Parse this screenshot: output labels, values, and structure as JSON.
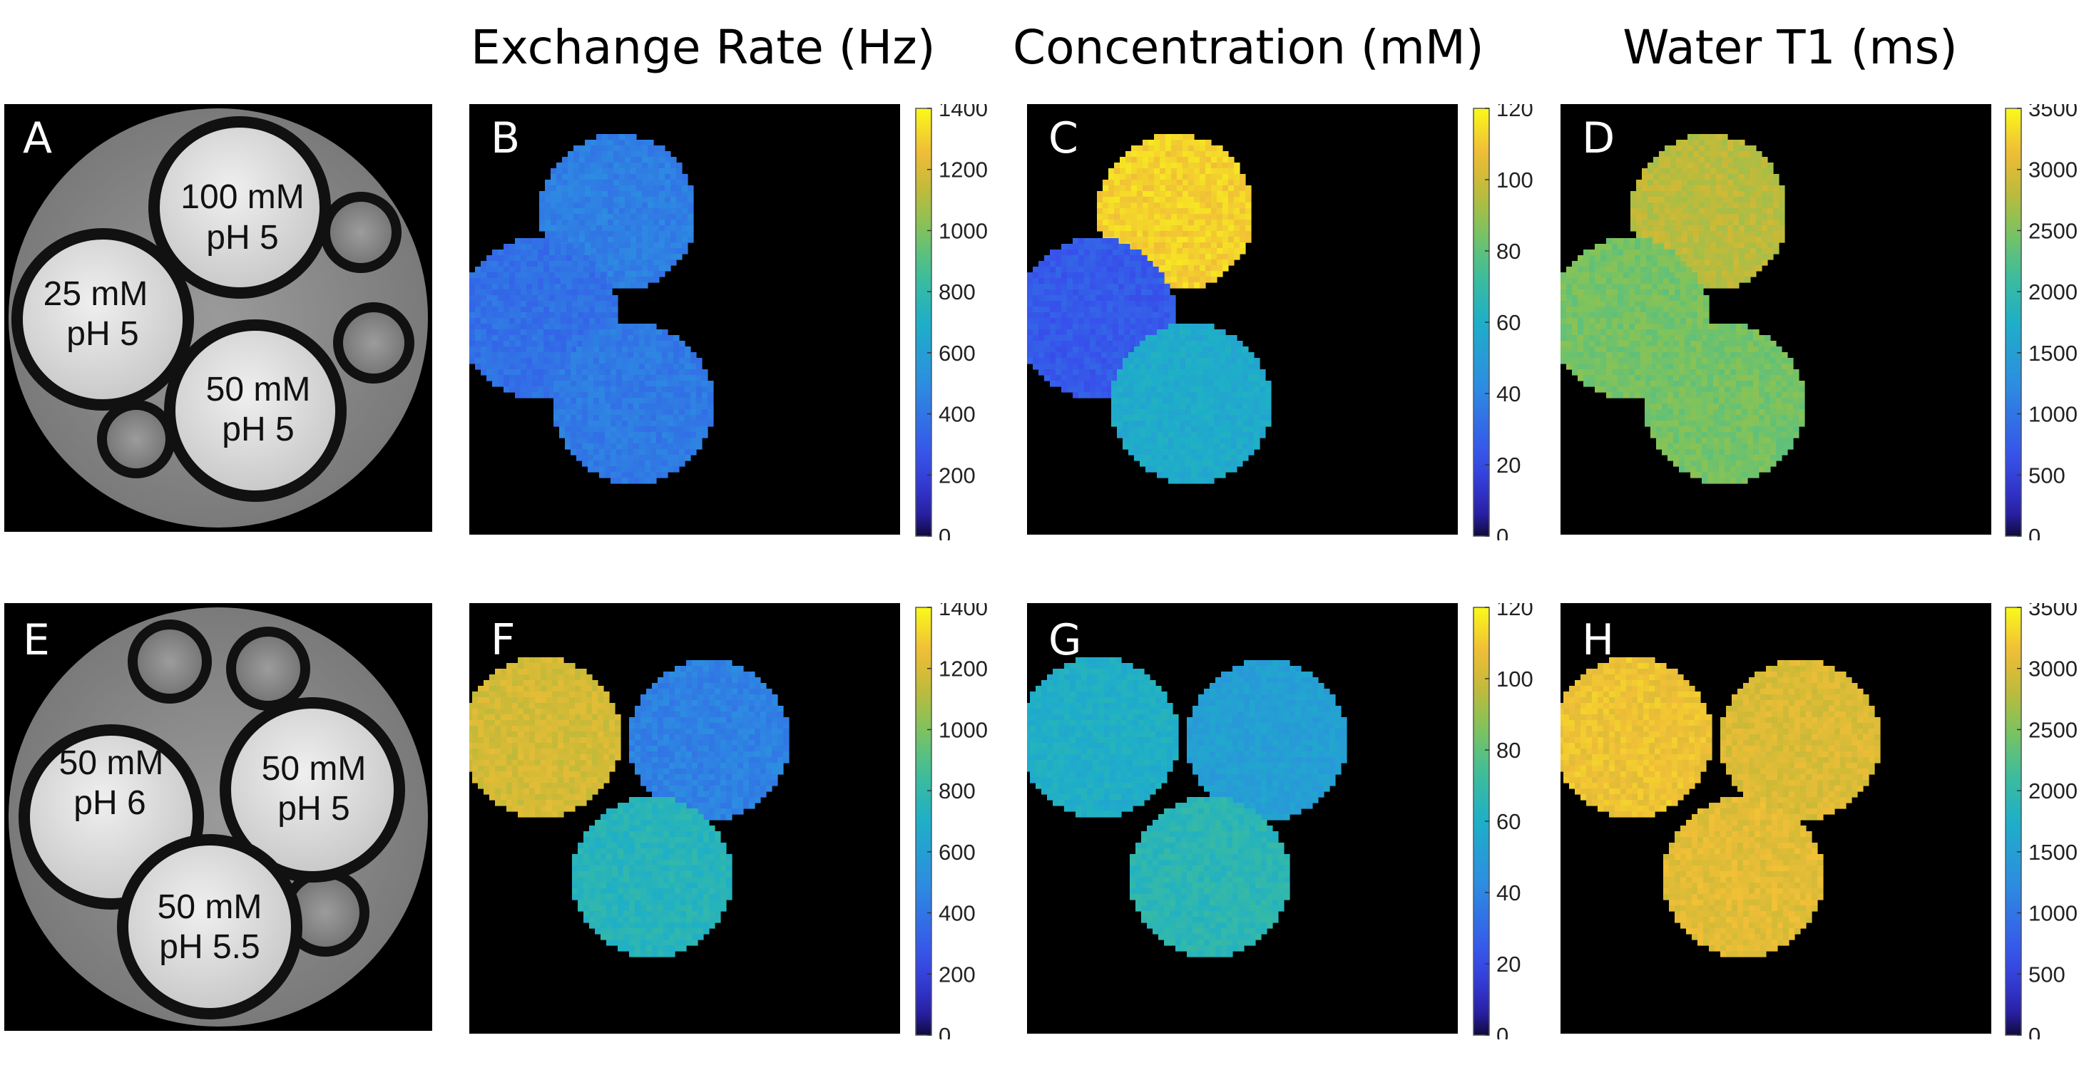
{
  "column_titles": [
    "Exchange Rate (Hz)",
    "Concentration (mM)",
    "Water T1 (ms)"
  ],
  "panel_labels": [
    "A",
    "B",
    "C",
    "D",
    "E",
    "F",
    "G",
    "H"
  ],
  "phantoms": {
    "A": [
      {
        "line1": "100 mM",
        "line2": "pH 5"
      },
      {
        "line1": "25 mM",
        "line2": "pH 5"
      },
      {
        "line1": "50 mM",
        "line2": "pH 5"
      }
    ],
    "E": [
      {
        "line1": "50 mM",
        "line2": "pH 6"
      },
      {
        "line1": "50 mM",
        "line2": "pH 5"
      },
      {
        "line1": "50 mM",
        "line2": "pH 5.5"
      }
    ]
  },
  "colorbars": {
    "exchange": {
      "ticks": [
        "0",
        "200",
        "400",
        "600",
        "800",
        "1000",
        "1200",
        "1400"
      ],
      "min": 0,
      "max": 1400
    },
    "concentration": {
      "ticks": [
        "0",
        "20",
        "40",
        "60",
        "80",
        "100",
        "120"
      ],
      "min": 0,
      "max": 120
    },
    "t1": {
      "ticks": [
        "0",
        "500",
        "1000",
        "1500",
        "2000",
        "2500",
        "3000",
        "3500"
      ],
      "min": 0,
      "max": 3500
    }
  },
  "chart_data": [
    {
      "type": "heatmap",
      "panel": "B",
      "title": "Exchange Rate (Hz)",
      "regions": [
        "top",
        "left",
        "bottom-right"
      ],
      "values": [
        440,
        380,
        420
      ],
      "clim": [
        0,
        1400
      ]
    },
    {
      "type": "heatmap",
      "panel": "C",
      "title": "Concentration (mM)",
      "regions": [
        "top",
        "left",
        "bottom-right"
      ],
      "values": [
        112,
        25,
        58
      ],
      "clim": [
        0,
        120
      ]
    },
    {
      "type": "heatmap",
      "panel": "D",
      "title": "Water T1 (ms)",
      "regions": [
        "top",
        "left",
        "bottom-right"
      ],
      "values": [
        2800,
        2450,
        2450
      ],
      "clim": [
        0,
        3500
      ]
    },
    {
      "type": "heatmap",
      "panel": "F",
      "title": "Exchange Rate (Hz)",
      "regions": [
        "top-left",
        "top-right",
        "bottom"
      ],
      "values": [
        1180,
        450,
        750
      ],
      "clim": [
        0,
        1400
      ]
    },
    {
      "type": "heatmap",
      "panel": "G",
      "title": "Concentration (mM)",
      "regions": [
        "top-left",
        "top-right",
        "bottom"
      ],
      "values": [
        60,
        52,
        66
      ],
      "clim": [
        0,
        120
      ]
    },
    {
      "type": "heatmap",
      "panel": "H",
      "title": "Water T1 (ms)",
      "regions": [
        "top-left",
        "top-right",
        "bottom"
      ],
      "values": [
        3150,
        3000,
        3050
      ],
      "clim": [
        0,
        3500
      ]
    }
  ]
}
